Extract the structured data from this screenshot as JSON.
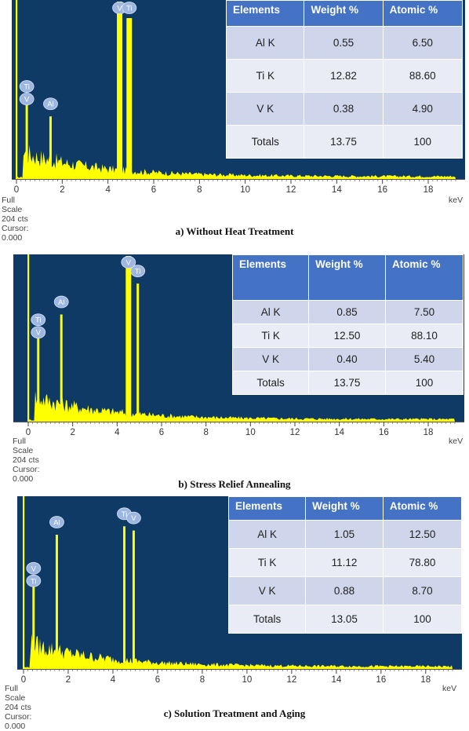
{
  "colors": {
    "plot_bg": "#0f3a66",
    "spectrum": "#ffff00",
    "header": "#4472c4",
    "row_a": "#cfd5ea",
    "row_b": "#e9ebf5"
  },
  "footer_text": "Full Scale 204 cts Cursor: 0.000",
  "unit_label": "keV",
  "chart_data": [
    {
      "type": "bar",
      "caption": "a)  Without Heat Treatment",
      "xlim": [
        0,
        19.2
      ],
      "xticks": [
        0,
        2,
        4,
        6,
        8,
        10,
        12,
        14,
        16,
        18
      ],
      "ylim": [
        0,
        204
      ],
      "peaks": [
        {
          "x": 0.45,
          "y": 92,
          "labels": [
            "Ti",
            "V"
          ]
        },
        {
          "x": 1.49,
          "y": 72,
          "labels": [
            "Al"
          ]
        },
        {
          "x": 4.51,
          "y": 204,
          "labels": [
            "V"
          ]
        },
        {
          "x": 4.93,
          "y": 185,
          "labels": [
            "Ti"
          ]
        }
      ],
      "table": {
        "headers": [
          "Elements",
          "Weight %",
          "Atomic %"
        ],
        "rows": [
          [
            "Al K",
            "0.55",
            "6.50"
          ],
          [
            "Ti K",
            "12.82",
            "88.60"
          ],
          [
            "V K",
            "0.38",
            "4.90"
          ],
          [
            "Totals",
            "13.75",
            "100"
          ]
        ]
      }
    },
    {
      "type": "bar",
      "caption": "b)  Stress Relief Annealing",
      "xlim": [
        0,
        19.2
      ],
      "xticks": [
        0,
        2,
        4,
        6,
        8,
        10,
        12,
        14,
        16,
        18
      ],
      "ylim": [
        0,
        204
      ],
      "peaks": [
        {
          "x": 0.45,
          "y": 110,
          "labels": [
            "Ti",
            "V"
          ]
        },
        {
          "x": 1.49,
          "y": 132,
          "labels": [
            "Al"
          ]
        },
        {
          "x": 4.51,
          "y": 204,
          "labels": [
            "V"
          ]
        },
        {
          "x": 4.93,
          "y": 170,
          "labels": [
            "Ti"
          ]
        }
      ],
      "table": {
        "headers": [
          "Elements",
          "Weight %",
          "Atomic %"
        ],
        "rows": [
          [
            "Al K",
            "0.85",
            "7.50"
          ],
          [
            "Ti K",
            "12.50",
            "88.10"
          ],
          [
            "V K",
            "0.40",
            "5.40"
          ],
          [
            "Totals",
            "13.75",
            "100"
          ]
        ]
      }
    },
    {
      "type": "bar",
      "caption": "c)  Solution Treatment and Aging",
      "xlim": [
        0,
        19.2
      ],
      "xticks": [
        0,
        2,
        4,
        6,
        8,
        10,
        12,
        14,
        16,
        18
      ],
      "ylim": [
        0,
        204
      ],
      "peaks": [
        {
          "x": 0.45,
          "y": 105,
          "labels": [
            "V",
            "Ti"
          ]
        },
        {
          "x": 1.49,
          "y": 160,
          "labels": [
            "Al"
          ]
        },
        {
          "x": 4.51,
          "y": 170,
          "labels": [
            "Ti"
          ]
        },
        {
          "x": 4.93,
          "y": 165,
          "labels": [
            "V"
          ]
        }
      ],
      "table": {
        "headers": [
          "Elements",
          "Weight %",
          "Atomic %"
        ],
        "rows": [
          [
            "Al K",
            "1.05",
            "12.50"
          ],
          [
            "Ti K",
            "11.12",
            "78.80"
          ],
          [
            "V K",
            "0.88",
            "8.70"
          ],
          [
            "Totals",
            "13.05",
            "100"
          ]
        ]
      }
    }
  ]
}
